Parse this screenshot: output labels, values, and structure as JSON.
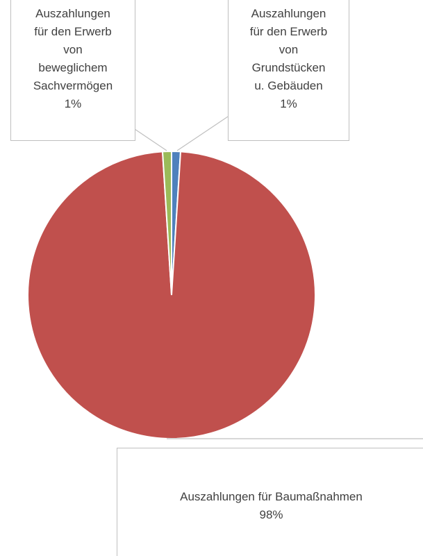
{
  "chart_data": {
    "type": "pie",
    "categories": [
      "Auszahlungen für den Erwerb von Grundstücken u. Gebäuden",
      "Auszahlungen für Baumaßnahmen",
      "Auszahlungen für den Erwerb von beweglichem Sachvermögen"
    ],
    "values": [
      1,
      98,
      1
    ],
    "value_labels": [
      "1%",
      "98%",
      "1%"
    ],
    "colors": [
      "#4f81bd",
      "#c0504d",
      "#9bbb59"
    ]
  }
}
